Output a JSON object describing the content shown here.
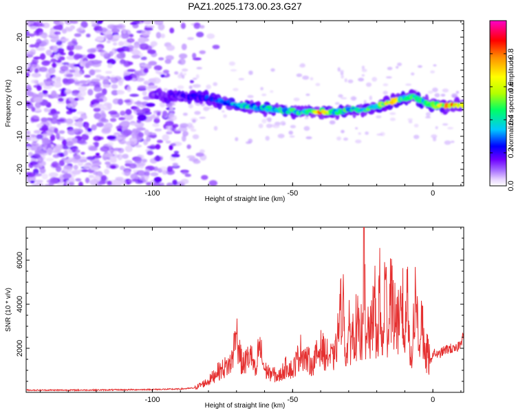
{
  "title": "PAZ1.2025.173.00.23.G27",
  "chart_data": [
    {
      "type": "heatmap",
      "xlabel": "Height of straight line (km)",
      "ylabel": "Frequency (Hz)",
      "xlim": [
        -145,
        11
      ],
      "ylim": [
        -25,
        25
      ],
      "xticks": [
        -100,
        -50,
        0
      ],
      "yticks": [
        -20,
        -10,
        0,
        10,
        20
      ],
      "colorbar": {
        "label": "Normalized spectral amplitude",
        "range": [
          0,
          1
        ],
        "ticks": [
          "0.0",
          "0.2",
          "0.4",
          "0.6",
          "0.8"
        ],
        "colormap": [
          "#ffffff",
          "#e6d2ff",
          "#a064ff",
          "#6e00ff",
          "#0000ff",
          "#00c8ff",
          "#00ff64",
          "#b4ff00",
          "#ffff00",
          "#ff8c00",
          "#ff0000",
          "#ff00c8"
        ]
      },
      "noise_region": {
        "x": [
          -145,
          -80
        ],
        "description_free": true
      },
      "signal_ridge": {
        "x": [
          -100,
          -95,
          -90,
          -85,
          -80,
          -75,
          -70,
          -65,
          -60,
          -55,
          -50,
          -45,
          -40,
          -35,
          -30,
          -25,
          -20,
          -15,
          -10,
          -7,
          -5,
          0,
          5,
          11
        ],
        "frequency": [
          2.5,
          2.5,
          2.0,
          2.0,
          1.5,
          0.5,
          -0.5,
          -1.0,
          -1.5,
          -2.0,
          -2.5,
          -2.5,
          -2.5,
          -2.5,
          -2.0,
          -2.0,
          -1.0,
          0.5,
          1.5,
          2.5,
          1.0,
          -0.5,
          -0.8,
          -0.8
        ],
        "amplitude": [
          0.15,
          0.2,
          0.2,
          0.25,
          0.3,
          0.35,
          0.4,
          0.45,
          0.45,
          0.5,
          0.5,
          0.5,
          0.85,
          0.55,
          0.5,
          0.5,
          0.55,
          0.85,
          0.55,
          0.6,
          0.55,
          0.55,
          0.9,
          0.9
        ]
      }
    },
    {
      "type": "line",
      "xlabel": "Height of straight line (km)",
      "ylabel": "SNR (10 * v/v)",
      "xlim": [
        -145,
        11
      ],
      "ylim": [
        0,
        7500
      ],
      "xticks": [
        -100,
        -50,
        0
      ],
      "yticks": [
        2000,
        4000,
        6000
      ],
      "line_color": "#e53030",
      "x": [
        -145,
        -130,
        -115,
        -100,
        -90,
        -85,
        -80,
        -77,
        -72,
        -70,
        -68,
        -65,
        -63,
        -62,
        -60,
        -58,
        -55,
        -52,
        -50,
        -47,
        -45,
        -43,
        -40,
        -38,
        -35,
        -32,
        -31,
        -30,
        -28,
        -27,
        -26,
        -25,
        -24.5,
        -24,
        -23,
        -22,
        -21,
        -20,
        -19,
        -18,
        -17,
        -16,
        -15,
        -14,
        -13,
        -12,
        -11,
        -10,
        -9,
        -8,
        -7.5,
        -7,
        -6,
        -5,
        -4,
        -3,
        -2,
        -1,
        0,
        2,
        4,
        6,
        8,
        10,
        11
      ],
      "snr": [
        100,
        100,
        110,
        130,
        150,
        200,
        500,
        900,
        1300,
        2650,
        1200,
        1700,
        800,
        2250,
        1000,
        900,
        700,
        1200,
        1000,
        1900,
        1500,
        1300,
        2000,
        1700,
        1500,
        4500,
        1200,
        2800,
        2500,
        3200,
        2000,
        3600,
        7500,
        1500,
        3000,
        2400,
        4800,
        2000,
        4500,
        1700,
        5100,
        2500,
        5200,
        3000,
        4000,
        2600,
        4500,
        1800,
        5700,
        1600,
        1100,
        3300,
        4300,
        1900,
        3900,
        1500,
        1800,
        1300,
        1800,
        1700,
        1900,
        2000,
        1900,
        2300,
        2700
      ]
    }
  ]
}
